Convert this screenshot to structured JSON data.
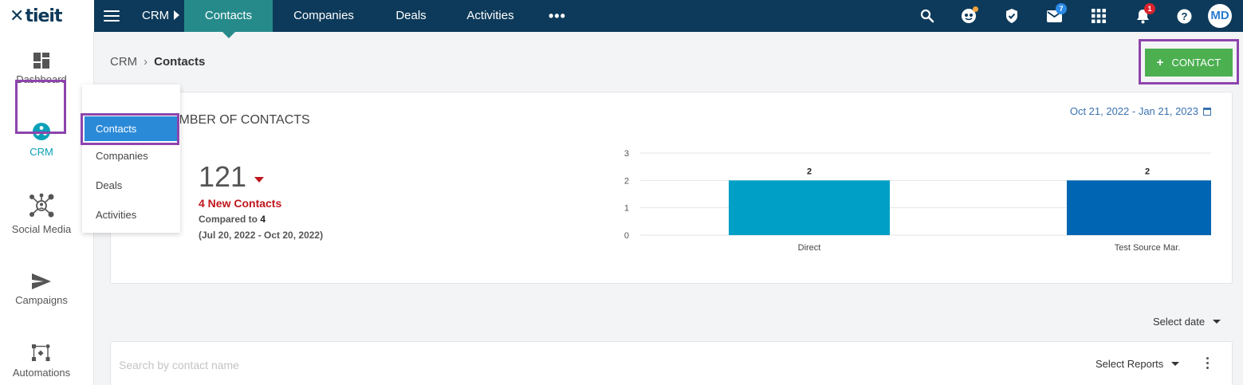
{
  "app": {
    "logo_text": "tieit"
  },
  "topnav": {
    "crm_label": "CRM",
    "tabs": [
      {
        "label": "Contacts",
        "active": true
      },
      {
        "label": "Companies",
        "active": false
      },
      {
        "label": "Deals",
        "active": false
      },
      {
        "label": "Activities",
        "active": false
      }
    ],
    "more": "•••",
    "icons": [
      "search-icon",
      "bot-icon",
      "shield-icon",
      "mail-icon",
      "apps-grid-icon",
      "bell-icon",
      "help-icon"
    ],
    "mail_badge": "7",
    "bell_badge": "1",
    "avatar_initials": "MD"
  },
  "sidebar": {
    "items": [
      {
        "label": "Dashboard",
        "icon": "dashboard-icon"
      },
      {
        "label": "CRM",
        "icon": "crm-icon",
        "active": true
      },
      {
        "label": "Social Media",
        "icon": "social-network-icon"
      },
      {
        "label": "Campaigns",
        "icon": "send-icon"
      },
      {
        "label": "Automations",
        "icon": "automation-icon"
      }
    ]
  },
  "submenu": {
    "items": [
      {
        "label": "Contacts",
        "active": true
      },
      {
        "label": "Companies"
      },
      {
        "label": "Deals"
      },
      {
        "label": "Activities"
      }
    ]
  },
  "breadcrumb": {
    "parent": "CRM",
    "sep": "›",
    "current": "Contacts"
  },
  "add_button": {
    "plus": "+",
    "label": "CONTACT"
  },
  "summary": {
    "title": "UMBER OF CONTACTS",
    "date_range": "Oct 21, 2022 - Jan 21, 2023",
    "total": "121",
    "new_contacts": "4 New Contacts",
    "compared_label": "Compared to",
    "compared_value": "4",
    "prev_range": "(Jul 20, 2022 - Oct 20, 2022)"
  },
  "chart_data": {
    "type": "bar",
    "categories": [
      "Direct",
      "Test Source Mar."
    ],
    "values": [
      2,
      2
    ],
    "colors": [
      "#00a0c6",
      "#0066b3"
    ],
    "ylim": [
      0,
      3
    ],
    "yticks": [
      0,
      1,
      2,
      3
    ],
    "data_labels": [
      "2",
      "2"
    ],
    "grid": true
  },
  "filters": {
    "select_date": "Select date",
    "search_placeholder": "Search by contact name",
    "select_reports": "Select Reports"
  }
}
